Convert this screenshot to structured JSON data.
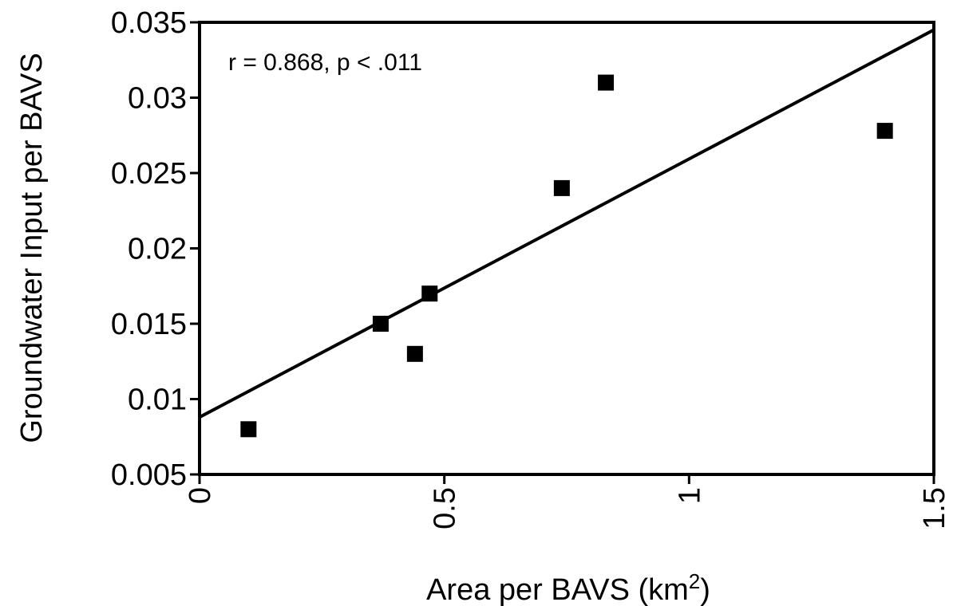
{
  "chart_data": {
    "type": "scatter",
    "title": "",
    "xlabel": "Area per BAVS (km",
    "xlabel_sup": "2",
    "xlabel_suffix": ")",
    "ylabel": "Groundwater Input per BAVS",
    "xlim": [
      0,
      1.5
    ],
    "ylim": [
      0.005,
      0.035
    ],
    "x_ticks": [
      "0",
      "0.5",
      "1",
      "1.5"
    ],
    "x_tick_values": [
      0,
      0.5,
      1,
      1.5
    ],
    "y_ticks": [
      "0.005",
      "0.01",
      "0.015",
      "0.02",
      "0.025",
      "0.03",
      "0.035"
    ],
    "y_tick_values": [
      0.005,
      0.01,
      0.015,
      0.02,
      0.025,
      0.03,
      0.035
    ],
    "grid": false,
    "annotation": "r = 0.868, p < .011",
    "marker": "square",
    "colors": {
      "points": "#000000",
      "line": "#000000",
      "axes": "#000000"
    },
    "series": [
      {
        "x": [
          0.1,
          0.37,
          0.44,
          0.47,
          0.74,
          0.83,
          1.4
        ],
        "y": [
          0.008,
          0.015,
          0.013,
          0.017,
          0.024,
          0.031,
          0.0278
        ]
      }
    ],
    "fit_line": {
      "x": [
        0,
        1.5
      ],
      "y": [
        0.0088,
        0.0345
      ]
    }
  }
}
